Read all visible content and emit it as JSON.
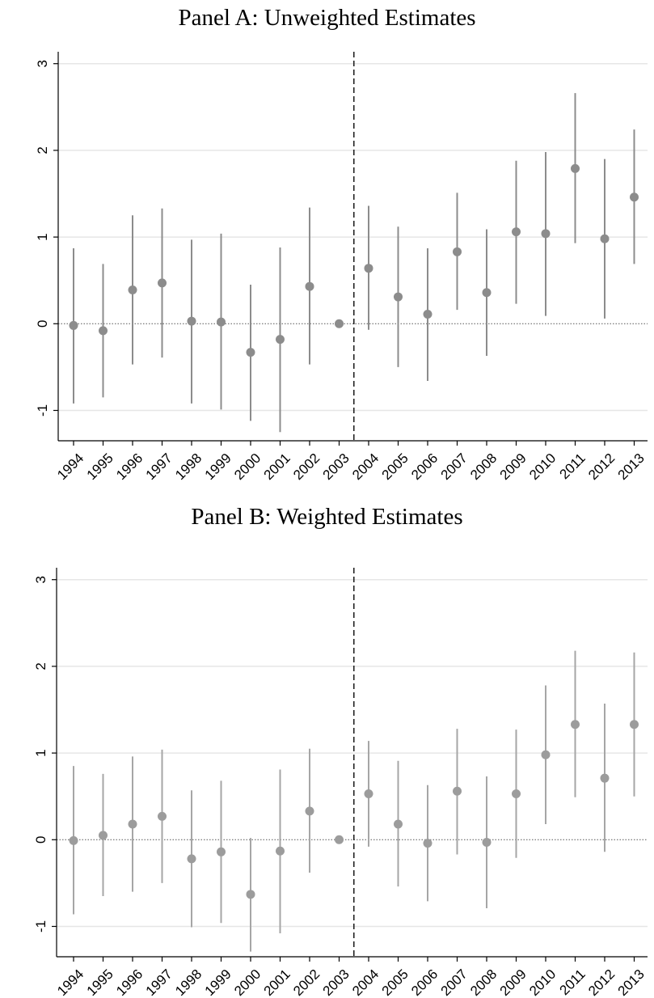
{
  "chart_data": [
    {
      "type": "scatter",
      "title": "Panel A: Unweighted Estimates",
      "xlabel": "",
      "ylabel": "",
      "categories": [
        "1994",
        "1995",
        "1996",
        "1997",
        "1998",
        "1999",
        "2000",
        "2001",
        "2002",
        "2003",
        "2004",
        "2005",
        "2006",
        "2007",
        "2008",
        "2009",
        "2010",
        "2011",
        "2012",
        "2013"
      ],
      "estimates": [
        -0.02,
        -0.08,
        0.39,
        0.47,
        0.03,
        0.02,
        -0.33,
        -0.18,
        0.43,
        0.0,
        0.64,
        0.31,
        0.11,
        0.83,
        0.36,
        1.06,
        1.04,
        1.79,
        0.98,
        1.46
      ],
      "ci_low": [
        -0.92,
        -0.85,
        -0.47,
        -0.39,
        -0.92,
        -0.99,
        -1.12,
        -1.25,
        -0.47,
        0.0,
        -0.07,
        -0.5,
        -0.66,
        0.16,
        -0.37,
        0.23,
        0.09,
        0.93,
        0.06,
        0.69
      ],
      "ci_high": [
        0.87,
        0.69,
        1.25,
        1.33,
        0.97,
        1.04,
        0.45,
        0.88,
        1.34,
        0.0,
        1.36,
        1.12,
        0.87,
        1.51,
        1.09,
        1.88,
        1.98,
        2.66,
        1.9,
        2.24
      ],
      "ylim": [
        -1.35,
        3.1
      ],
      "yticks": [
        "-1",
        "0",
        "1",
        "2",
        "3"
      ],
      "event_line_between": [
        "2003",
        "2004"
      ],
      "reference_line_y": 0,
      "grid": true,
      "marker_color": "#8c8c8c",
      "ci_color": "#8c8c8c"
    },
    {
      "type": "scatter",
      "title": "Panel B: Weighted Estimates",
      "xlabel": "",
      "ylabel": "",
      "categories": [
        "1994",
        "1995",
        "1996",
        "1997",
        "1998",
        "1999",
        "2000",
        "2001",
        "2002",
        "2003",
        "2004",
        "2005",
        "2006",
        "2007",
        "2008",
        "2009",
        "2010",
        "2011",
        "2012",
        "2013"
      ],
      "estimates": [
        -0.01,
        0.05,
        0.18,
        0.27,
        -0.22,
        -0.14,
        -0.63,
        -0.13,
        0.33,
        0.0,
        0.53,
        0.18,
        -0.04,
        0.56,
        -0.03,
        0.53,
        0.98,
        1.33,
        0.71,
        1.33
      ],
      "ci_low": [
        -0.86,
        -0.65,
        -0.6,
        -0.5,
        -1.01,
        -0.96,
        -1.29,
        -1.08,
        -0.38,
        0.0,
        -0.08,
        -0.54,
        -0.71,
        -0.17,
        -0.79,
        -0.21,
        0.18,
        0.49,
        -0.14,
        0.5
      ],
      "ci_high": [
        0.85,
        0.76,
        0.96,
        1.04,
        0.57,
        0.68,
        0.02,
        0.81,
        1.05,
        0.0,
        1.14,
        0.91,
        0.63,
        1.28,
        0.73,
        1.27,
        1.78,
        2.18,
        1.57,
        2.16
      ],
      "ylim": [
        -1.35,
        3.1
      ],
      "yticks": [
        "-1",
        "0",
        "1",
        "2",
        "3"
      ],
      "event_line_between": [
        "2003",
        "2004"
      ],
      "reference_line_y": 0,
      "grid": true,
      "marker_color": "#9c9c9c",
      "ci_color": "#a6a6a6"
    }
  ]
}
